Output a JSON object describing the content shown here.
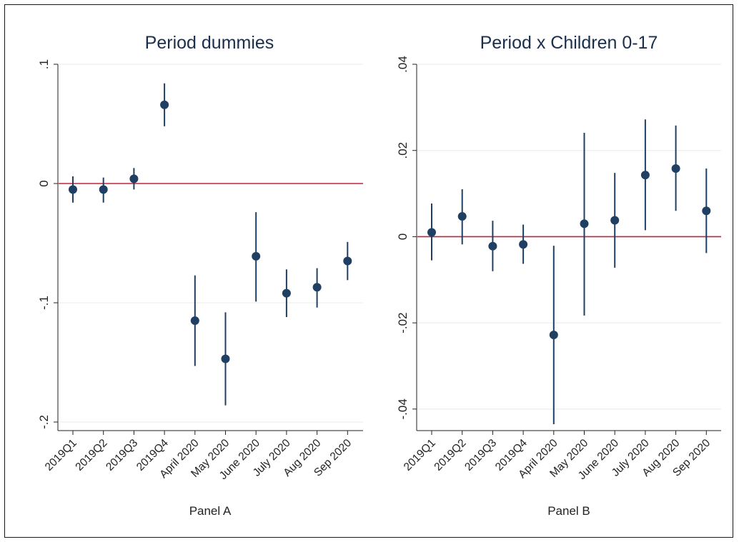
{
  "colors": {
    "marker": "#1f3f63",
    "ci": "#1f3f63",
    "zero_line": "#c4213a",
    "grid": "#e6ece9"
  },
  "chart_data": [
    {
      "type": "scatter",
      "title": "Period dummies",
      "xlabel": "Panel A",
      "ylabel": "",
      "categories": [
        "2019Q1",
        "2019Q2",
        "2019Q3",
        "2019Q4",
        "April 2020",
        "May 2020",
        "June 2020",
        "July 2020",
        "Aug 2020",
        "Sep 2020"
      ],
      "values": [
        -0.005,
        -0.005,
        0.004,
        0.066,
        -0.115,
        -0.147,
        -0.061,
        -0.092,
        -0.087,
        -0.065
      ],
      "ci_low": [
        -0.016,
        -0.016,
        -0.005,
        0.048,
        -0.153,
        -0.186,
        -0.099,
        -0.112,
        -0.104,
        -0.081
      ],
      "ci_high": [
        0.006,
        0.005,
        0.013,
        0.084,
        -0.077,
        -0.108,
        -0.024,
        -0.072,
        -0.071,
        -0.049
      ],
      "ylim": [
        -0.2,
        0.1
      ],
      "yticks": [
        0.1,
        0,
        -0.1,
        -0.2
      ],
      "ytick_labels": [
        ".1",
        "0",
        "-.1",
        "-.2"
      ],
      "reference_line": 0,
      "grid": true
    },
    {
      "type": "scatter",
      "title": "Period x Children 0-17",
      "xlabel": "Panel B",
      "ylabel": "",
      "categories": [
        "2019Q1",
        "2019Q2",
        "2019Q3",
        "2019Q4",
        "April 2020",
        "May 2020",
        "June 2020",
        "July 2020",
        "Aug 2020",
        "Sep 2020"
      ],
      "values": [
        0.001,
        0.0047,
        -0.0022,
        -0.0018,
        -0.0228,
        0.003,
        0.0038,
        0.0143,
        0.0158,
        0.006
      ],
      "ci_low": [
        -0.0055,
        -0.0018,
        -0.008,
        -0.0063,
        -0.0435,
        -0.0183,
        -0.0072,
        0.0015,
        0.006,
        -0.0038
      ],
      "ci_high": [
        0.0077,
        0.011,
        0.0037,
        0.0028,
        -0.0021,
        0.0241,
        0.0148,
        0.0272,
        0.0258,
        0.0158
      ],
      "ylim": [
        -0.045,
        0.04
      ],
      "yticks": [
        0.04,
        0.02,
        0,
        -0.02,
        -0.04
      ],
      "ytick_labels": [
        ".04",
        ".02",
        "0",
        "-.02",
        "-.04"
      ],
      "reference_line": 0,
      "grid": true
    }
  ]
}
